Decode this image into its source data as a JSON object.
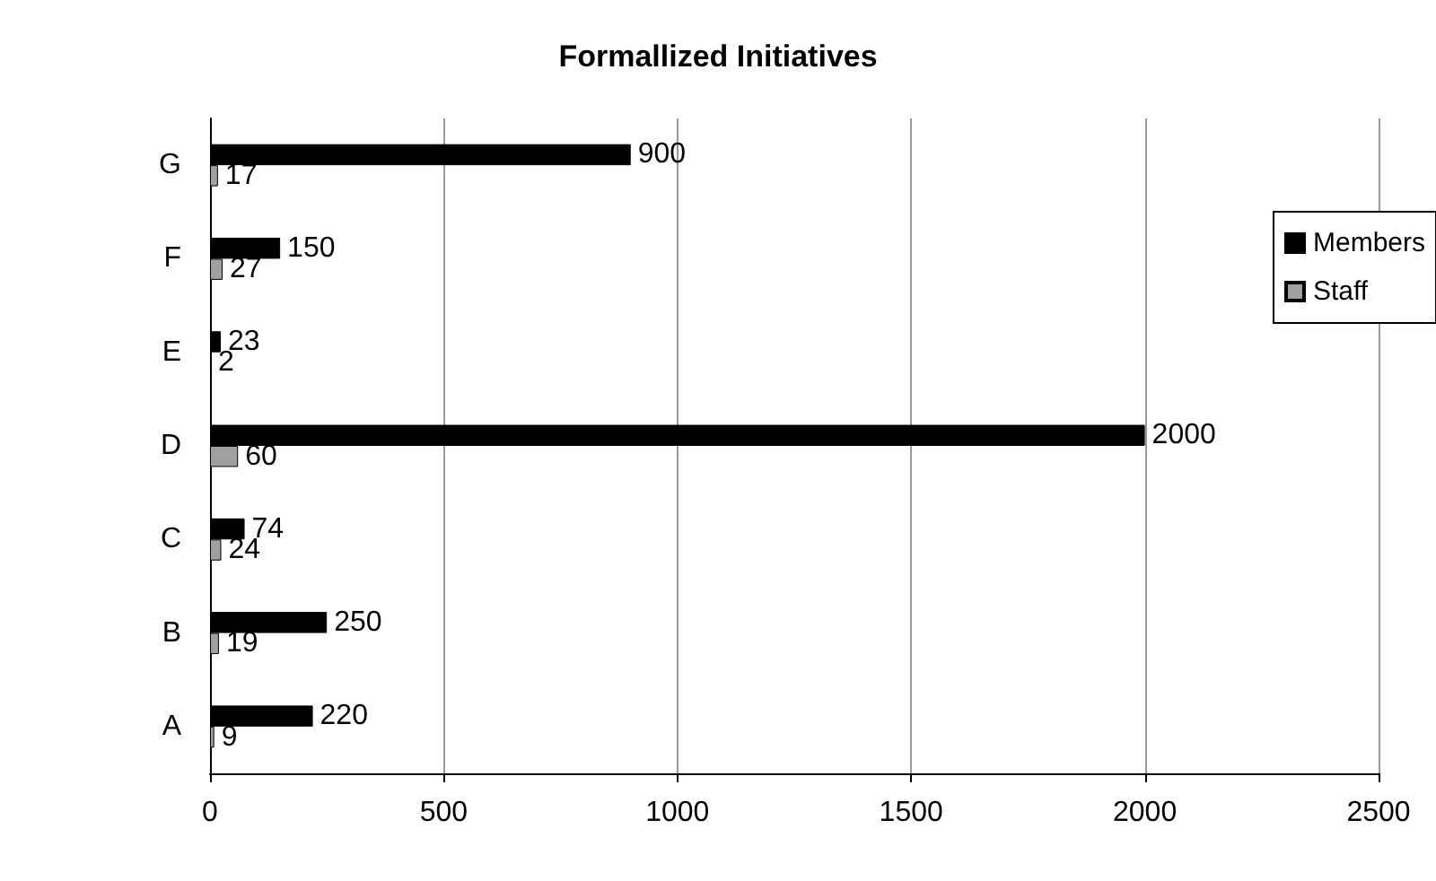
{
  "chart_data": {
    "type": "bar",
    "title": "Formallized Initiatives",
    "orientation": "horizontal",
    "categories": [
      "G",
      "F",
      "E",
      "D",
      "C",
      "B",
      "A"
    ],
    "series": [
      {
        "name": "Members",
        "color": "#000000",
        "values": [
          900,
          150,
          23,
          2000,
          74,
          250,
          220
        ]
      },
      {
        "name": "Staff",
        "color": "#a0a0a0",
        "values": [
          17,
          27,
          2,
          60,
          24,
          19,
          9
        ]
      }
    ],
    "xlim": [
      0,
      2500
    ],
    "xticks": [
      0,
      500,
      1000,
      1500,
      2000,
      2500
    ],
    "grid": "x",
    "legend": "right",
    "data_labels": true
  }
}
